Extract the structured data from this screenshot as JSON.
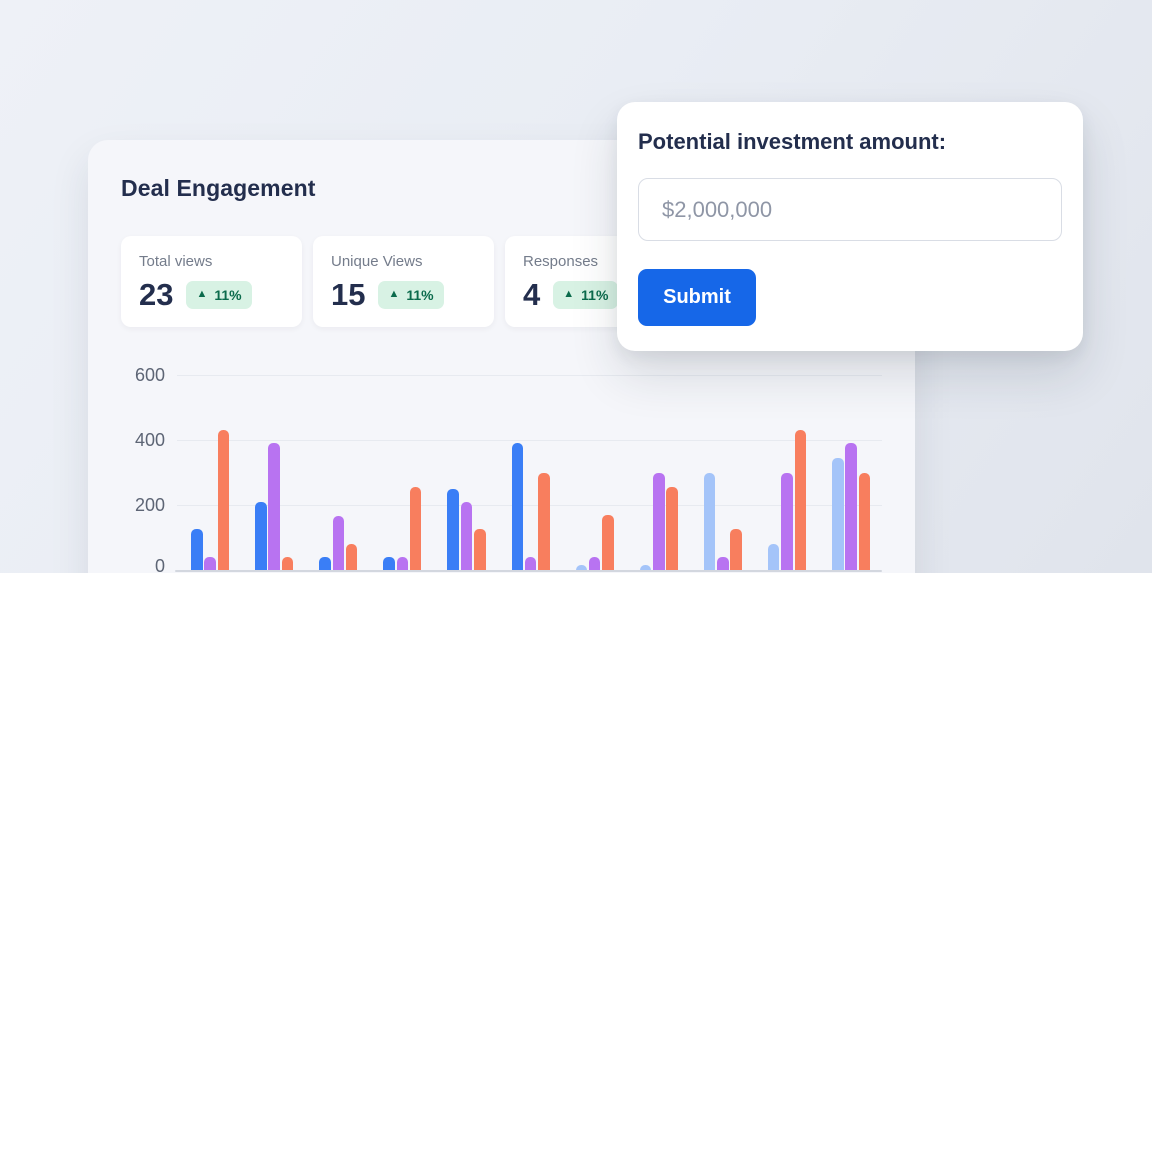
{
  "deal_card": {
    "title": "Deal Engagement",
    "stats": [
      {
        "label": "Total views",
        "value": "23",
        "change": "11%",
        "trend": "up"
      },
      {
        "label": "Unique Views",
        "value": "15",
        "change": "11%",
        "trend": "up"
      },
      {
        "label": "Responses",
        "value": "4",
        "change": "11%",
        "trend": "up"
      }
    ]
  },
  "chart_data": {
    "type": "bar",
    "title": "Deal Engagement",
    "group_count": 11,
    "x_tick_labels_visible": false,
    "series": [
      {
        "name": "series-blue",
        "values": [
          125,
          210,
          40,
          40,
          250,
          390,
          15,
          15,
          300,
          80,
          345
        ],
        "bar_colors": [
          "#3a7ef6",
          "#3a7ef6",
          "#3a7ef6",
          "#3a7ef6",
          "#3a7ef6",
          "#3a7ef6",
          "#a4c4f9",
          "#a4c4f9",
          "#a4c4f9",
          "#a4c4f9",
          "#a4c4f9"
        ]
      },
      {
        "name": "series-purple",
        "values": [
          40,
          390,
          165,
          40,
          210,
          40,
          40,
          300,
          40,
          300,
          390
        ],
        "color": "#b873f1"
      },
      {
        "name": "series-orange",
        "values": [
          430,
          40,
          80,
          255,
          125,
          300,
          170,
          255,
          125,
          430,
          300
        ],
        "color": "#f87e5e"
      }
    ],
    "ylim": [
      0,
      600
    ],
    "yticks": [
      0,
      200,
      400,
      600
    ],
    "grid": true,
    "legend": false
  },
  "modal": {
    "title": "Potential investment amount:",
    "input_placeholder": "$2,000,000",
    "submit_label": "Submit"
  },
  "colors": {
    "accent_blue": "#1667e8",
    "bar_blue": "#3a7ef6",
    "bar_blue_muted": "#a4c4f9",
    "bar_purple": "#b873f1",
    "bar_orange": "#f87e5e",
    "badge_green_bg": "#d8f2e4",
    "badge_green_text": "#0b6b4c",
    "text_dark": "#232e4d",
    "text_gray": "#747c8b"
  }
}
